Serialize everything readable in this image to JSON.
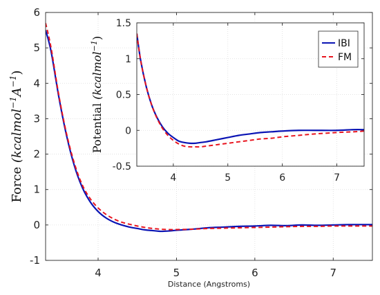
{
  "chart_data": [
    {
      "id": "main",
      "type": "line",
      "title": "",
      "xlabel": "Distance (Angstroms)",
      "ylabel": "Force (kcalmol⁻¹A⁻¹)",
      "ylabel_parts": {
        "text": "Force ",
        "math": "(kcalmol",
        "sup1": "−1",
        "math2": "A",
        "sup2": "−1",
        "close": ")"
      },
      "xlim": [
        3.33,
        7.5
      ],
      "ylim": [
        -1,
        6
      ],
      "xticks": [
        4,
        5,
        6,
        7
      ],
      "xtick_labels": [
        "4",
        "5",
        "6",
        "7"
      ],
      "yticks": [
        -1,
        0,
        1,
        2,
        3,
        4,
        5,
        6
      ],
      "ytick_labels": [
        "-1",
        "0",
        "1",
        "2",
        "3",
        "4",
        "5",
        "6"
      ],
      "grid": true,
      "series": [
        {
          "name": "IBI",
          "style": "solid",
          "color": "#0a14b4",
          "x": [
            3.33,
            3.4,
            3.5,
            3.6,
            3.7,
            3.8,
            3.9,
            4.0,
            4.1,
            4.2,
            4.3,
            4.4,
            4.5,
            4.6,
            4.7,
            4.8,
            4.9,
            5.0,
            5.2,
            5.4,
            5.6,
            5.8,
            6.0,
            6.2,
            6.4,
            6.6,
            6.8,
            7.0,
            7.2,
            7.5
          ],
          "y": [
            5.5,
            4.9,
            3.6,
            2.5,
            1.65,
            1.05,
            0.65,
            0.38,
            0.2,
            0.08,
            0.0,
            -0.06,
            -0.1,
            -0.14,
            -0.16,
            -0.18,
            -0.17,
            -0.15,
            -0.12,
            -0.08,
            -0.06,
            -0.04,
            -0.03,
            -0.01,
            -0.02,
            0.0,
            -0.01,
            0.0,
            0.01,
            0.01
          ]
        },
        {
          "name": "FM",
          "style": "dashed",
          "color": "#e8141e",
          "x": [
            3.33,
            3.4,
            3.5,
            3.6,
            3.7,
            3.8,
            3.9,
            4.0,
            4.1,
            4.2,
            4.3,
            4.4,
            4.5,
            4.6,
            4.7,
            4.8,
            4.9,
            5.0,
            5.2,
            5.4,
            5.6,
            5.8,
            6.0,
            6.2,
            6.4,
            6.6,
            6.8,
            7.0,
            7.2,
            7.5
          ],
          "y": [
            5.7,
            5.0,
            3.65,
            2.55,
            1.72,
            1.12,
            0.74,
            0.48,
            0.3,
            0.17,
            0.08,
            0.02,
            -0.03,
            -0.07,
            -0.1,
            -0.12,
            -0.13,
            -0.13,
            -0.12,
            -0.1,
            -0.09,
            -0.08,
            -0.07,
            -0.06,
            -0.05,
            -0.04,
            -0.04,
            -0.03,
            -0.03,
            -0.03
          ]
        }
      ]
    },
    {
      "id": "inset",
      "type": "line",
      "title": "",
      "xlabel": "",
      "ylabel": "Potential (kcalmol⁻¹)",
      "ylabel_parts": {
        "text": "Potential ",
        "math": "(kcalmol",
        "sup1": "−1",
        "close": ")"
      },
      "xlim": [
        3.33,
        7.5
      ],
      "ylim": [
        -0.5,
        1.5
      ],
      "xticks": [
        4,
        5,
        6,
        7
      ],
      "xtick_labels": [
        "4",
        "5",
        "6",
        "7"
      ],
      "yticks": [
        -0.5,
        0,
        0.5,
        1,
        1.5
      ],
      "ytick_labels": [
        "-0.5",
        "0",
        "0.5",
        "1",
        "1.5"
      ],
      "grid": true,
      "legend": "top-right",
      "series": [
        {
          "name": "IBI",
          "style": "solid",
          "color": "#0a14b4",
          "x": [
            3.33,
            3.4,
            3.5,
            3.6,
            3.7,
            3.8,
            3.9,
            4.0,
            4.1,
            4.2,
            4.3,
            4.4,
            4.5,
            4.6,
            4.8,
            5.0,
            5.2,
            5.4,
            5.6,
            5.8,
            6.0,
            6.3,
            6.6,
            7.0,
            7.3,
            7.5
          ],
          "y": [
            1.35,
            0.98,
            0.62,
            0.36,
            0.18,
            0.05,
            -0.04,
            -0.1,
            -0.15,
            -0.17,
            -0.18,
            -0.18,
            -0.17,
            -0.16,
            -0.13,
            -0.1,
            -0.07,
            -0.05,
            -0.03,
            -0.02,
            -0.01,
            0.0,
            0.0,
            0.0,
            0.01,
            0.01
          ]
        },
        {
          "name": "FM",
          "style": "dashed",
          "color": "#e8141e",
          "x": [
            3.33,
            3.4,
            3.5,
            3.6,
            3.7,
            3.8,
            3.9,
            4.0,
            4.1,
            4.2,
            4.3,
            4.4,
            4.5,
            4.6,
            4.8,
            5.0,
            5.2,
            5.4,
            5.6,
            5.8,
            6.0,
            6.3,
            6.6,
            7.0,
            7.3,
            7.5
          ],
          "y": [
            1.35,
            0.98,
            0.62,
            0.36,
            0.17,
            0.03,
            -0.07,
            -0.14,
            -0.19,
            -0.22,
            -0.23,
            -0.23,
            -0.23,
            -0.22,
            -0.2,
            -0.18,
            -0.16,
            -0.14,
            -0.12,
            -0.11,
            -0.09,
            -0.07,
            -0.05,
            -0.03,
            -0.02,
            -0.01
          ]
        }
      ]
    }
  ]
}
